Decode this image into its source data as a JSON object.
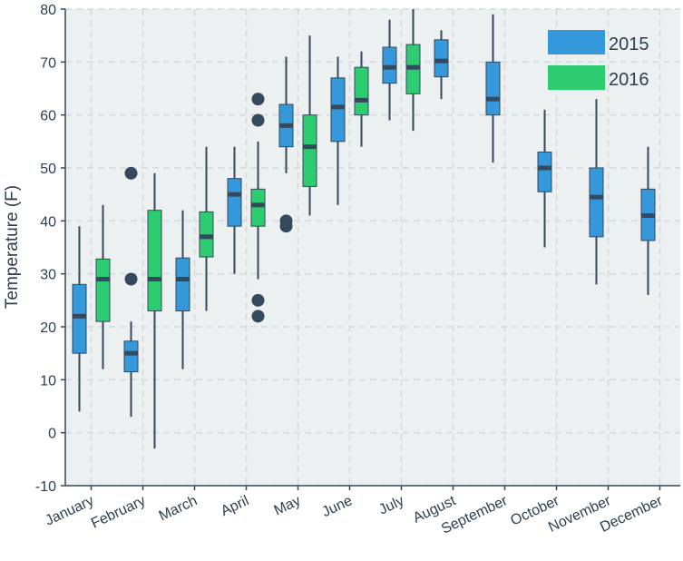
{
  "chart_data": {
    "type": "box",
    "title": "",
    "xlabel": "",
    "ylabel": "Temperature (F)",
    "ylim": [
      -10,
      80
    ],
    "yticks": [
      -10,
      0,
      10,
      20,
      30,
      40,
      50,
      60,
      70,
      80
    ],
    "grid": true,
    "legend_position": "top-right",
    "categories": [
      "January",
      "February",
      "March",
      "April",
      "May",
      "June",
      "July",
      "August",
      "September",
      "October",
      "November",
      "December"
    ],
    "colors": {
      "2015": "#3498db",
      "2016": "#2ecc71",
      "whisker": "#34495e",
      "median": "#34495e",
      "outlier": "#34495e",
      "background": "#ecf0f1",
      "grid": "#d5d8dc"
    },
    "series": [
      {
        "name": "2015",
        "boxes": [
          {
            "category": "January",
            "low": 4,
            "q1": 15,
            "median": 22,
            "q3": 28,
            "high": 39,
            "outliers": []
          },
          {
            "category": "February",
            "low": 3,
            "q1": 11.5,
            "median": 15,
            "q3": 17.3,
            "high": 21,
            "outliers": [
              29,
              49
            ]
          },
          {
            "category": "March",
            "low": 12,
            "q1": 23,
            "median": 29,
            "q3": 33,
            "high": 42,
            "outliers": []
          },
          {
            "category": "April",
            "low": 30,
            "q1": 39,
            "median": 45,
            "q3": 48,
            "high": 54,
            "outliers": []
          },
          {
            "category": "May",
            "low": 49,
            "q1": 54,
            "median": 58,
            "q3": 62,
            "high": 71,
            "outliers": [
              39,
              40
            ]
          },
          {
            "category": "June",
            "low": 43,
            "q1": 55,
            "median": 61.5,
            "q3": 67,
            "high": 71,
            "outliers": []
          },
          {
            "category": "July",
            "low": 59,
            "q1": 66,
            "median": 69,
            "q3": 72.8,
            "high": 78,
            "outliers": []
          },
          {
            "category": "August",
            "low": 63,
            "q1": 67.2,
            "median": 70.2,
            "q3": 74.2,
            "high": 76,
            "outliers": []
          },
          {
            "category": "September",
            "low": 51,
            "q1": 60,
            "median": 63,
            "q3": 70,
            "high": 79,
            "outliers": []
          },
          {
            "category": "October",
            "low": 35,
            "q1": 45.5,
            "median": 50,
            "q3": 53,
            "high": 61,
            "outliers": []
          },
          {
            "category": "November",
            "low": 28,
            "q1": 37,
            "median": 44.5,
            "q3": 50,
            "high": 63,
            "outliers": []
          },
          {
            "category": "December",
            "low": 26,
            "q1": 36.3,
            "median": 41,
            "q3": 46,
            "high": 54,
            "outliers": []
          }
        ]
      },
      {
        "name": "2016",
        "boxes": [
          {
            "category": "January",
            "low": 12,
            "q1": 21,
            "median": 29,
            "q3": 32.8,
            "high": 43,
            "outliers": []
          },
          {
            "category": "February",
            "low": -3,
            "q1": 23,
            "median": 29,
            "q3": 42,
            "high": 49,
            "outliers": []
          },
          {
            "category": "March",
            "low": 23,
            "q1": 33.2,
            "median": 37,
            "q3": 41.7,
            "high": 54,
            "outliers": []
          },
          {
            "category": "April",
            "low": 29,
            "q1": 39,
            "median": 43,
            "q3": 46,
            "high": 55,
            "outliers": [
              22,
              25,
              59,
              63
            ]
          },
          {
            "category": "May",
            "low": 41,
            "q1": 46.5,
            "median": 54,
            "q3": 60,
            "high": 75,
            "outliers": []
          },
          {
            "category": "June",
            "low": 54,
            "q1": 60,
            "median": 62.8,
            "q3": 69,
            "high": 72,
            "outliers": []
          },
          {
            "category": "July",
            "low": 57,
            "q1": 64,
            "median": 69,
            "q3": 73.3,
            "high": 80,
            "outliers": []
          }
        ]
      }
    ],
    "legend": [
      "2015",
      "2016"
    ]
  }
}
